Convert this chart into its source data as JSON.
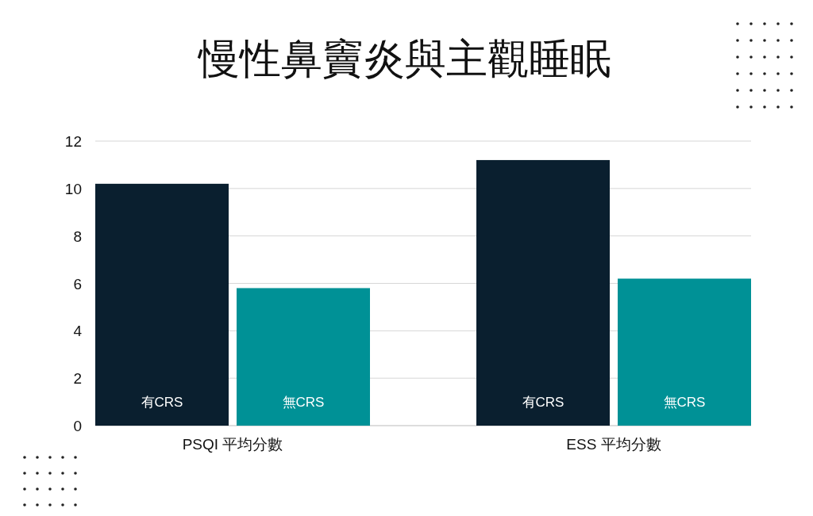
{
  "chart_data": {
    "type": "bar",
    "title": "慢性鼻竇炎與主觀睡眠",
    "categories": [
      "PSQI 平均分數",
      "ESS 平均分數"
    ],
    "series": [
      {
        "name": "有CRS",
        "color": "#0a1f2f",
        "values": [
          10.2,
          11.2
        ]
      },
      {
        "name": "無CRS",
        "color": "#009196",
        "values": [
          5.8,
          6.2
        ]
      }
    ],
    "ylim": [
      0,
      12
    ],
    "yticks": [
      0,
      2,
      4,
      6,
      8,
      10,
      12
    ],
    "grid": "y",
    "legend": false
  }
}
